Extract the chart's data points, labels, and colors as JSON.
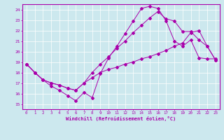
{
  "xlabel": "Windchill (Refroidissement éolien,°C)",
  "background_color": "#cce8ee",
  "line_color": "#aa00aa",
  "grid_color": "#aaccdd",
  "xlim": [
    -0.5,
    23.5
  ],
  "ylim": [
    14.5,
    24.5
  ],
  "xticks": [
    0,
    1,
    2,
    3,
    4,
    5,
    6,
    7,
    8,
    9,
    10,
    11,
    12,
    13,
    14,
    15,
    16,
    17,
    18,
    19,
    20,
    21,
    22,
    23
  ],
  "yticks": [
    15,
    16,
    17,
    18,
    19,
    20,
    21,
    22,
    23,
    24
  ],
  "line1_x": [
    0,
    1,
    2,
    3,
    4,
    5,
    6,
    7,
    8,
    9,
    10,
    11,
    12,
    13,
    14,
    15,
    16,
    17,
    18,
    19,
    20,
    21,
    22,
    23
  ],
  "line1_y": [
    18.8,
    18.0,
    17.3,
    16.7,
    16.3,
    15.8,
    15.3,
    16.1,
    15.6,
    17.9,
    19.4,
    20.5,
    21.7,
    22.9,
    24.1,
    24.3,
    24.1,
    22.9,
    21.0,
    20.5,
    21.1,
    19.4,
    19.3,
    19.3
  ],
  "line2_x": [
    0,
    1,
    2,
    3,
    4,
    5,
    6,
    7,
    8,
    9,
    10,
    11,
    12,
    13,
    14,
    15,
    16,
    17,
    18,
    19,
    20,
    21,
    22,
    23
  ],
  "line2_y": [
    18.8,
    18.0,
    17.3,
    17.0,
    16.8,
    16.5,
    16.3,
    17.0,
    17.5,
    18.0,
    18.3,
    18.5,
    18.8,
    19.0,
    19.3,
    19.5,
    19.8,
    20.1,
    20.5,
    20.8,
    21.8,
    22.0,
    20.5,
    19.2
  ],
  "line3_x": [
    0,
    1,
    2,
    3,
    4,
    5,
    6,
    7,
    8,
    9,
    10,
    11,
    12,
    13,
    14,
    15,
    16,
    17,
    18,
    19,
    20,
    21,
    22,
    23
  ],
  "line3_y": [
    18.8,
    18.0,
    17.3,
    17.0,
    16.8,
    16.5,
    16.3,
    17.0,
    18.0,
    18.8,
    19.5,
    20.3,
    21.0,
    21.8,
    22.5,
    23.2,
    23.8,
    23.1,
    22.9,
    21.9,
    21.9,
    21.1,
    20.5,
    19.2
  ]
}
